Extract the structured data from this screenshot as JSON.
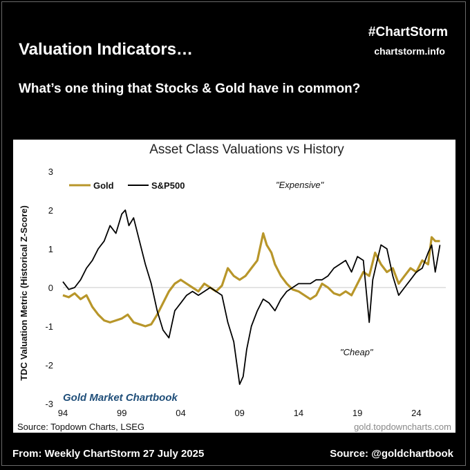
{
  "header": {
    "headline": "Valuation Indicators…",
    "brand": "#ChartStorm",
    "brand_url": "chartstorm.info",
    "question": "What’s one thing that Stocks & Gold have in common?"
  },
  "footer": {
    "left": "From: Weekly ChartStorm 27 July 2025",
    "right": "Source: @goldchartbook"
  },
  "colors": {
    "gold": "#B8962A",
    "sp500": "#000000",
    "watermark": "#1F4E79"
  },
  "chart_data": {
    "type": "line",
    "title": "Asset Class Valuations vs History",
    "xlabel": "",
    "ylabel": "TDC Valuation Metric (Historical Z-Score)",
    "xlim": [
      1994,
      2026.5
    ],
    "ylim": [
      -3,
      3
    ],
    "x_ticks": [
      {
        "value": 1994,
        "label": "94"
      },
      {
        "value": 1999,
        "label": "99"
      },
      {
        "value": 2004,
        "label": "04"
      },
      {
        "value": 2009,
        "label": "09"
      },
      {
        "value": 2014,
        "label": "14"
      },
      {
        "value": 2019,
        "label": "19"
      },
      {
        "value": 2024,
        "label": "24"
      }
    ],
    "y_ticks": [
      3,
      2,
      1,
      0,
      -1,
      -2,
      -3
    ],
    "annotations": {
      "expensive": "\"Expensive\"",
      "cheap": "\"Cheap\""
    },
    "watermark": "Gold Market Chartbook",
    "source_left": "Source: Topdown Charts, LSEG",
    "source_right": "gold.topdowncharts.com",
    "series": [
      {
        "name": "Gold",
        "x": [
          1994.0,
          1994.5,
          1995.0,
          1995.5,
          1996.0,
          1996.5,
          1997.0,
          1997.5,
          1998.0,
          1998.5,
          1999.0,
          1999.5,
          2000.0,
          2000.5,
          2001.0,
          2001.5,
          2002.0,
          2002.5,
          2003.0,
          2003.5,
          2004.0,
          2004.5,
          2005.0,
          2005.5,
          2006.0,
          2006.5,
          2007.0,
          2007.5,
          2008.0,
          2008.5,
          2009.0,
          2009.5,
          2010.0,
          2010.5,
          2011.0,
          2011.3,
          2011.7,
          2012.0,
          2012.5,
          2013.0,
          2013.5,
          2014.0,
          2014.5,
          2015.0,
          2015.5,
          2016.0,
          2016.5,
          2017.0,
          2017.5,
          2018.0,
          2018.5,
          2019.0,
          2019.5,
          2020.0,
          2020.5,
          2021.0,
          2021.5,
          2022.0,
          2022.5,
          2023.0,
          2023.5,
          2024.0,
          2024.5,
          2025.0,
          2025.3,
          2025.6,
          2026.0
        ],
        "values": [
          -0.2,
          -0.25,
          -0.15,
          -0.3,
          -0.2,
          -0.5,
          -0.7,
          -0.85,
          -0.9,
          -0.85,
          -0.8,
          -0.7,
          -0.9,
          -0.95,
          -1.0,
          -0.95,
          -0.7,
          -0.4,
          -0.1,
          0.1,
          0.2,
          0.1,
          0.0,
          -0.1,
          0.1,
          0.0,
          -0.1,
          0.05,
          0.5,
          0.3,
          0.2,
          0.3,
          0.5,
          0.7,
          1.4,
          1.1,
          0.9,
          0.6,
          0.3,
          0.1,
          -0.05,
          -0.1,
          -0.2,
          -0.3,
          -0.2,
          0.1,
          0.0,
          -0.15,
          -0.2,
          -0.1,
          -0.2,
          0.1,
          0.4,
          0.3,
          0.9,
          0.6,
          0.4,
          0.5,
          0.1,
          0.3,
          0.5,
          0.4,
          0.7,
          0.6,
          1.3,
          1.2,
          1.2
        ]
      },
      {
        "name": "S&P500",
        "x": [
          1994.0,
          1994.5,
          1995.0,
          1995.5,
          1996.0,
          1996.5,
          1997.0,
          1997.5,
          1998.0,
          1998.5,
          1999.0,
          1999.3,
          1999.6,
          2000.0,
          2000.5,
          2001.0,
          2001.5,
          2002.0,
          2002.5,
          2003.0,
          2003.5,
          2004.0,
          2004.5,
          2005.0,
          2005.5,
          2006.0,
          2006.5,
          2007.0,
          2007.5,
          2008.0,
          2008.5,
          2009.0,
          2009.3,
          2009.6,
          2010.0,
          2010.5,
          2011.0,
          2011.5,
          2012.0,
          2012.5,
          2013.0,
          2013.5,
          2014.0,
          2014.5,
          2015.0,
          2015.5,
          2016.0,
          2016.5,
          2017.0,
          2017.5,
          2018.0,
          2018.5,
          2019.0,
          2019.5,
          2020.0,
          2020.3,
          2020.6,
          2021.0,
          2021.5,
          2022.0,
          2022.5,
          2023.0,
          2023.5,
          2024.0,
          2024.5,
          2025.0,
          2025.3,
          2025.6,
          2026.0
        ],
        "values": [
          0.15,
          -0.05,
          0.0,
          0.2,
          0.5,
          0.7,
          1.0,
          1.2,
          1.6,
          1.4,
          1.9,
          2.0,
          1.6,
          1.8,
          1.2,
          0.6,
          0.1,
          -0.6,
          -1.1,
          -1.3,
          -0.6,
          -0.4,
          -0.2,
          -0.1,
          -0.2,
          -0.1,
          0.0,
          -0.1,
          -0.2,
          -0.9,
          -1.4,
          -2.5,
          -2.3,
          -1.6,
          -1.0,
          -0.6,
          -0.3,
          -0.4,
          -0.6,
          -0.3,
          -0.1,
          0.0,
          0.1,
          0.1,
          0.1,
          0.2,
          0.2,
          0.3,
          0.5,
          0.6,
          0.7,
          0.4,
          0.8,
          0.7,
          -0.9,
          0.2,
          0.6,
          1.1,
          1.0,
          0.3,
          -0.2,
          0.0,
          0.2,
          0.4,
          0.5,
          0.9,
          1.1,
          0.4,
          1.1
        ]
      }
    ]
  }
}
